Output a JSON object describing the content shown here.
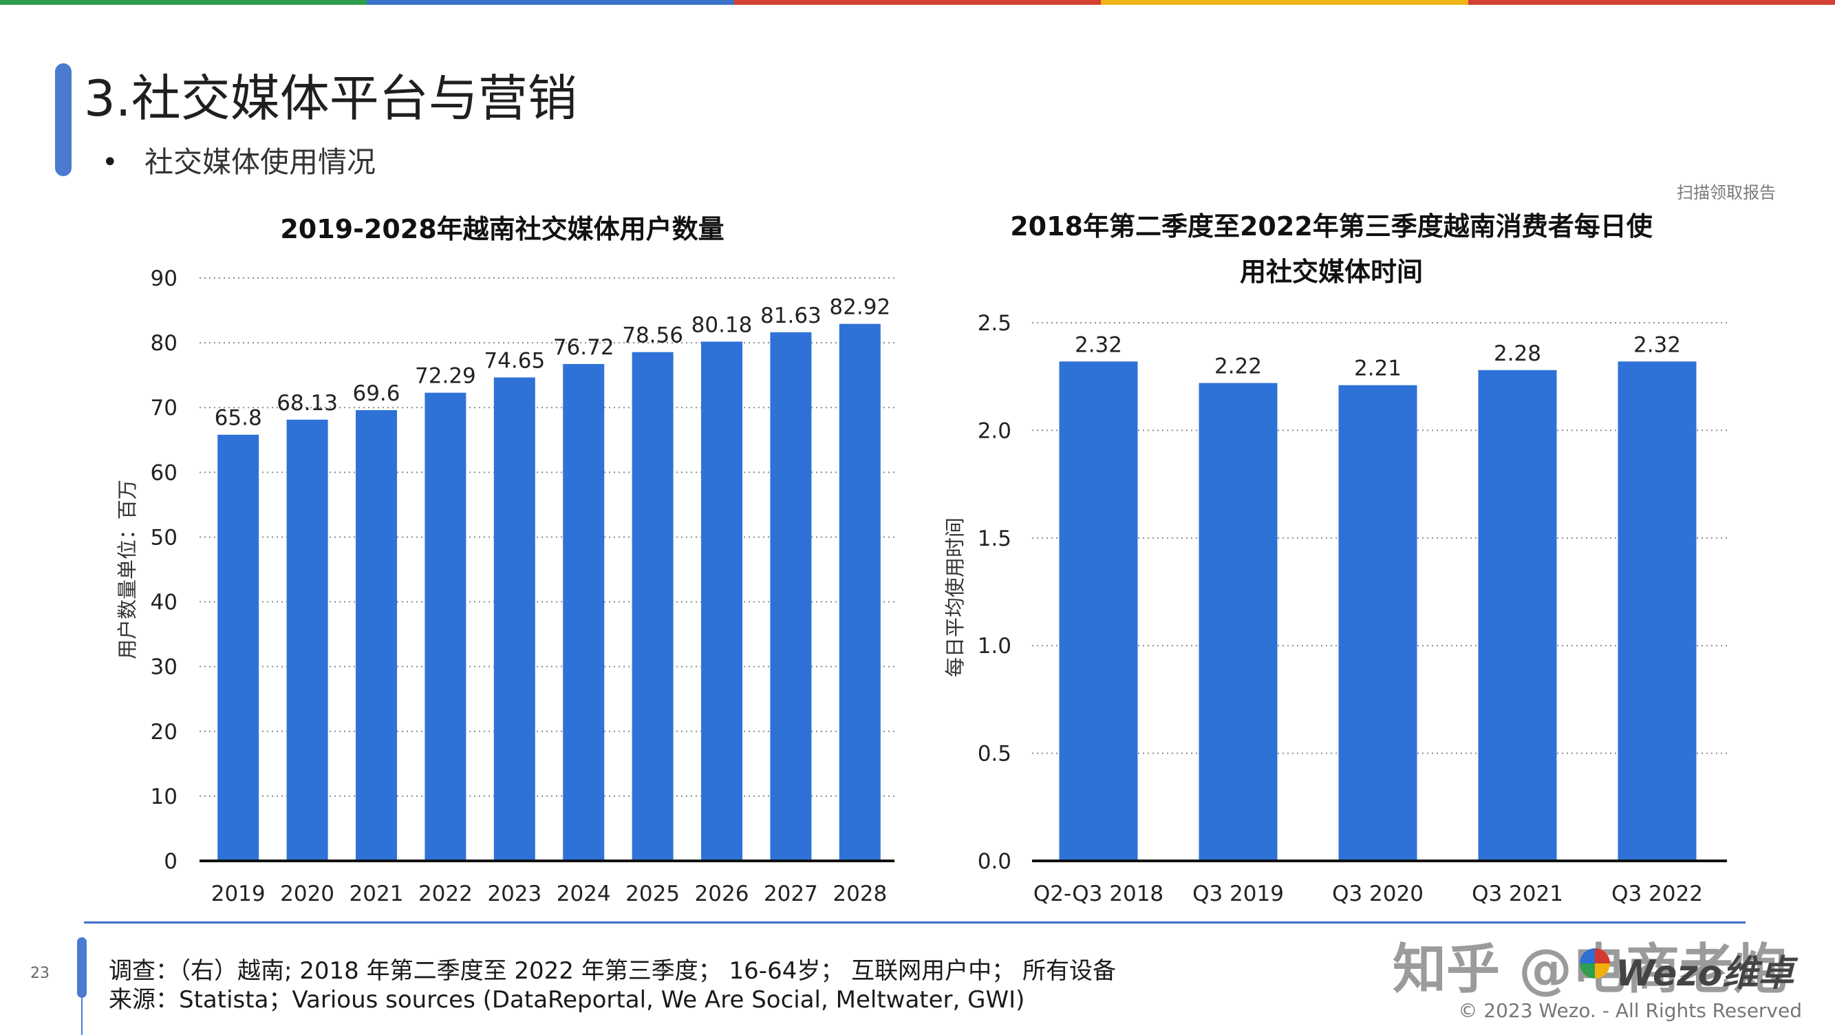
{
  "header": {
    "stripe_colors": [
      "#2e9e4b",
      "#3b73c8",
      "#d4402f",
      "#f0b417",
      "#d4402f"
    ],
    "title": "3.社交媒体平台与营销",
    "bullet": "•",
    "subtitle": "社交媒体使用情况",
    "corner_note": "扫描领取报告"
  },
  "colors": {
    "bar": "#2e72d8",
    "accent": "#4a7bd0"
  },
  "chart_data": [
    {
      "type": "bar",
      "title": "2019-2028年越南社交媒体用户数量",
      "ylabel": "用户数量单位：百万",
      "xlabel": "",
      "categories": [
        "2019",
        "2020",
        "2021",
        "2022",
        "2023",
        "2024",
        "2025",
        "2026",
        "2027",
        "2028"
      ],
      "values": [
        65.8,
        68.13,
        69.6,
        72.29,
        74.65,
        76.72,
        78.56,
        80.18,
        81.63,
        82.92
      ],
      "value_labels": [
        "65.8",
        "68.13",
        "69.6",
        "72.29",
        "74.65",
        "76.72",
        "78.56",
        "80.18",
        "81.63",
        "82.92"
      ],
      "ylim": [
        0,
        90
      ],
      "yticks": [
        0,
        10,
        20,
        30,
        40,
        50,
        60,
        70,
        80,
        90
      ],
      "ytick_labels": [
        "0",
        "10",
        "20",
        "30",
        "40",
        "50",
        "60",
        "70",
        "80",
        "90"
      ],
      "grid": "dotted horizontal"
    },
    {
      "type": "bar",
      "title_line1": "2018年第二季度至2022年第三季度越南消费者每日使",
      "title_line2": "用社交媒体时间",
      "ylabel": "每日平均使用时间",
      "xlabel": "",
      "categories": [
        "Q2-Q3 2018",
        "Q3 2019",
        "Q3 2020",
        "Q3 2021",
        "Q3 2022"
      ],
      "values": [
        2.32,
        2.22,
        2.21,
        2.28,
        2.32
      ],
      "value_labels": [
        "2.32",
        "2.22",
        "2.21",
        "2.28",
        "2.32"
      ],
      "ylim": [
        0,
        2.5
      ],
      "yticks": [
        0,
        0.5,
        1.0,
        1.5,
        2.0,
        2.5
      ],
      "ytick_labels": [
        "0.0",
        "0.5",
        "1.0",
        "1.5",
        "2.0",
        "2.5"
      ],
      "grid": "dotted horizontal"
    }
  ],
  "footer": {
    "page_number": "23",
    "survey": "调查：（右）越南; 2018 年第二季度至 2022 年第三季度； 16-64岁； 互联网用户中； 所有设备",
    "source": "来源：Statista；Various sources (DataReportal, We Are Social, Meltwater, GWI)",
    "watermark": "知乎 @电商老炮",
    "logo_text": "Wezo维卓",
    "copyright": "© 2023 Wezo. - All Rights Reserved"
  }
}
